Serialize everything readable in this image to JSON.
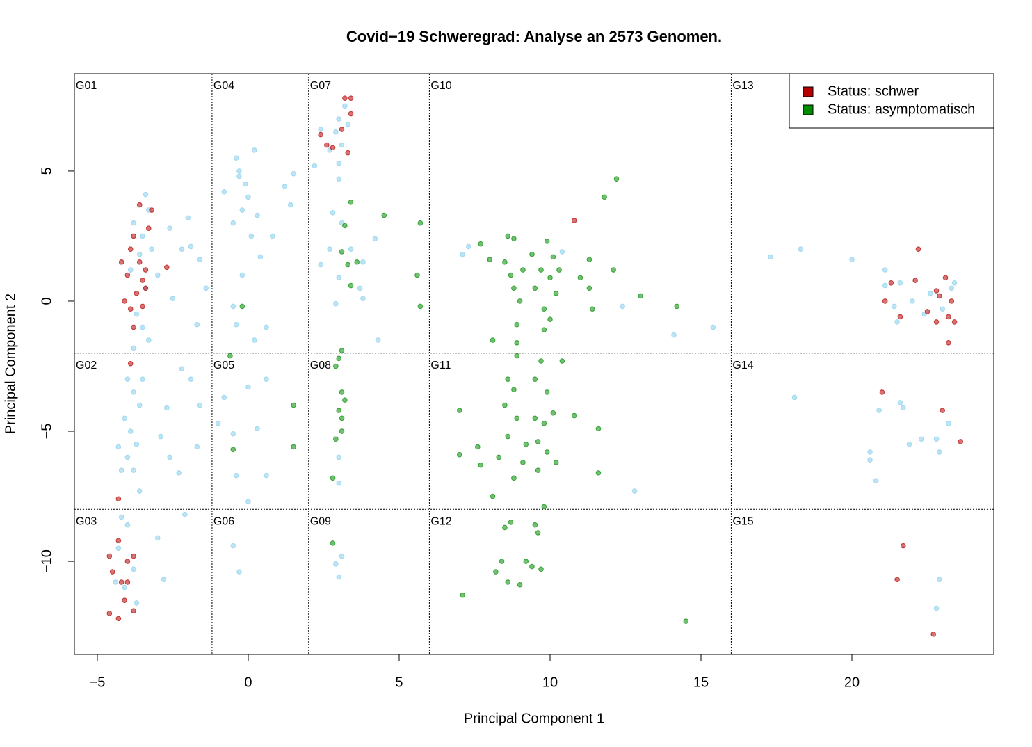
{
  "chart_data": {
    "type": "scatter",
    "title": "Covid−19 Schweregrad: Analyse an 2573 Genomen.",
    "xlabel": "Principal Component 1",
    "ylabel": "Principal Component 2",
    "xlim": [
      -5.76,
      24.7
    ],
    "ylim": [
      -13.58,
      8.74
    ],
    "xticks": [
      {
        "value": -5,
        "label": "−5"
      },
      0,
      5,
      10,
      15,
      20
    ],
    "yticks": [
      {
        "value": -10,
        "label": "−10"
      },
      {
        "value": -5,
        "label": "−5"
      },
      0,
      5
    ],
    "x_breaks": [
      -1.2,
      2,
      6,
      16
    ],
    "y_breaks": [
      -2,
      -8
    ],
    "groups": [
      "G01",
      "G02",
      "G03",
      "G04",
      "G05",
      "G06",
      "G07",
      "G08",
      "G09",
      "G10",
      "G11",
      "G12",
      "G13",
      "G14",
      "G15"
    ],
    "legend": "topright",
    "series": [
      {
        "color": "#87ceeb",
        "x": [
          -3.8,
          -3.5,
          -3.3,
          -3.6,
          -3.9,
          -3.4,
          -3.7,
          -3.2,
          -3.5,
          -3.8,
          -3.4,
          -3,
          -2.6,
          -2.2,
          -1.9,
          -1.6,
          -1.4,
          -2,
          -2.5,
          -1.7,
          -3.3,
          -4,
          -3.8,
          -3.6,
          -4.1,
          -3.9,
          -3.7,
          -4,
          -3.8,
          -4.3,
          -3.5,
          -4.2,
          -2.7,
          -2.9,
          -2.6,
          -2.3,
          -2.2,
          -1.9,
          -1.6,
          -1.7,
          -3.6,
          -4.2,
          -4,
          -4.3,
          -3.8,
          -4.1,
          -3.7,
          -4.4,
          -3,
          -2.8,
          -2.1,
          -0.3,
          -0.1,
          -0.4,
          0,
          -0.2,
          0.2,
          -0.5,
          0.1,
          -0.3,
          0.3,
          -0.8,
          1.2,
          1.5,
          1.4,
          0.8,
          0.4,
          -0.2,
          -0.5,
          0.6,
          0.2,
          -0.4,
          0,
          0.6,
          0.3,
          -0.8,
          -0.5,
          -1,
          -0.4,
          0.6,
          0,
          -0.5,
          -0.3,
          3,
          3.2,
          2.9,
          3.1,
          3.3,
          2.7,
          3,
          2.4,
          2.2,
          3,
          2.8,
          3.1,
          2.7,
          3.4,
          3.8,
          2.4,
          3,
          3.7,
          2.9,
          4.2,
          3.8,
          4.3,
          3,
          3,
          2.9,
          3.1,
          3,
          7.1,
          7.3,
          12.4,
          14.1,
          15.4,
          10.4,
          12.8,
          17.3,
          18.3,
          20,
          21.1,
          21.1,
          21.6,
          21.5,
          22,
          22.6,
          23,
          23.3,
          21.4,
          22.4,
          23.4,
          18.1,
          20.9,
          21.7,
          21.6,
          21.9,
          22.3,
          22.8,
          23.2,
          20.6,
          20.6,
          20.8,
          22.9,
          22.9,
          22.8
        ],
        "values": [
          3,
          2.5,
          3.5,
          1.8,
          1.2,
          0.5,
          -0.5,
          2,
          -1,
          -1.8,
          4.1,
          1,
          2.8,
          2,
          2.1,
          1.6,
          0.5,
          3.2,
          0.1,
          -0.9,
          -1.5,
          -3,
          -3.5,
          -4,
          -4.5,
          -5,
          -5.5,
          -6,
          -6.5,
          -5.6,
          -3,
          -6.5,
          -4.1,
          -5.2,
          -6,
          -6.6,
          -2.6,
          -3,
          -4,
          -5.6,
          -7.3,
          -8.3,
          -8.6,
          -9.5,
          -10.3,
          -11,
          -11.6,
          -10.8,
          -9.1,
          -10.7,
          -8.2,
          5,
          4.5,
          5.5,
          4,
          3.5,
          5.8,
          3,
          2.5,
          4.8,
          3.3,
          4.2,
          4.4,
          4.9,
          3.7,
          2.5,
          1.7,
          1,
          -0.2,
          -1,
          -1.5,
          -0.9,
          -3.3,
          -3,
          -4.9,
          -3.7,
          -5.1,
          -4.7,
          -6.7,
          -6.7,
          -7.7,
          -9.4,
          -10.4,
          7,
          7.5,
          6.5,
          6,
          6.8,
          5.8,
          5.3,
          6.6,
          5.2,
          4.7,
          3.4,
          3,
          2,
          2,
          1.5,
          1.4,
          0.9,
          0.5,
          -0.1,
          2.4,
          0.1,
          -1.5,
          -6,
          -7,
          -10.1,
          -9.8,
          -10.6,
          1.8,
          2.1,
          -0.2,
          -1.3,
          -1,
          1.9,
          -7.3,
          1.7,
          2,
          1.6,
          1.2,
          0.6,
          0.7,
          -0.8,
          0,
          0.3,
          -0.3,
          0.5,
          -0.2,
          -0.5,
          0.7,
          -3.7,
          -4.2,
          -4.1,
          -3.9,
          -5.5,
          -5.3,
          -5.3,
          -4.7,
          -6.1,
          -5.8,
          -6.9,
          -5.8,
          -10.7,
          -11.8
        ]
      },
      {
        "name": "Status: schwer",
        "color": "#b40000",
        "x": [
          -3.8,
          -3.6,
          -4,
          -3.5,
          -3.7,
          -3.9,
          -3.4,
          -3.6,
          -3.2,
          -3.3,
          -3.9,
          -4.1,
          -3.8,
          -3.5,
          -2.7,
          -4.2,
          -3.4,
          -3.9,
          -4.3,
          -4.3,
          -4.5,
          -4,
          -3.8,
          -4.2,
          -4.1,
          -3.8,
          -4.3,
          -4.6,
          -4.6,
          -4,
          3.2,
          3.4,
          2.4,
          2.6,
          2.8,
          3.1,
          3.3,
          3.4,
          10.8,
          22.2,
          21.3,
          22.1,
          23.1,
          21.1,
          21.6,
          22.5,
          22.9,
          23.3,
          23.2,
          23.4,
          22.8,
          23.2,
          22.8,
          21,
          23,
          23.6,
          21.7,
          21.5,
          22.7
        ],
        "values": [
          2.5,
          1.5,
          1,
          0.8,
          0.3,
          -0.3,
          1.2,
          3.7,
          3.5,
          2.8,
          2,
          0,
          -1,
          -0.2,
          1.3,
          1.5,
          0.5,
          -2.4,
          -7.6,
          -9.2,
          -10.4,
          -10,
          -9.8,
          -10.8,
          -11.5,
          -11.9,
          -12.2,
          -12,
          -9.8,
          -10.8,
          7.8,
          7.8,
          6.4,
          6,
          5.9,
          6.6,
          5.7,
          7.2,
          3.1,
          2,
          0.7,
          0.8,
          0.9,
          0,
          -0.6,
          -0.4,
          0.2,
          0,
          -0.6,
          -0.8,
          -0.8,
          -1.6,
          0.4,
          -3.5,
          -4.2,
          -5.4,
          -9.4,
          -10.7,
          -12.8
        ]
      },
      {
        "name": "Status: asymptomatisch",
        "color": "#008a00",
        "x": [
          -0.2,
          -0.6,
          -0.5,
          1.5,
          1.5,
          3.4,
          4.5,
          5.7,
          3.2,
          3.1,
          3.6,
          3.3,
          3.4,
          5.6,
          5.7,
          3.1,
          3,
          2.9,
          3.1,
          3.2,
          3,
          3.1,
          3.1,
          2.9,
          2.8,
          2.8,
          7.7,
          8,
          8.6,
          8.8,
          8.5,
          8.7,
          9.1,
          8.8,
          9,
          9.4,
          9.9,
          10.1,
          9.7,
          10,
          10.2,
          9.8,
          10,
          9.5,
          10.3,
          11.3,
          11.8,
          12.2,
          11.3,
          11,
          12.1,
          13,
          14.2,
          8.9,
          8.1,
          9.8,
          8.9,
          11.4,
          8.9,
          9.7,
          10.4,
          8.6,
          8.8,
          9.5,
          9.9,
          8.5,
          8.9,
          9.5,
          9.8,
          8.6,
          9.2,
          9.6,
          9.9,
          10.1,
          10.8,
          11.6,
          7,
          7.6,
          7,
          8.3,
          9.1,
          9.6,
          10.2,
          11.6,
          8.8,
          8.1,
          9.8,
          7.7,
          8.7,
          8.5,
          9.5,
          9.6,
          8.4,
          9.2,
          9.4,
          9.7,
          8.2,
          8.6,
          9,
          7.1,
          14.5
        ],
        "values": [
          -0.2,
          -2.1,
          -5.7,
          -4,
          -5.6,
          3.8,
          3.3,
          3,
          2.9,
          1.9,
          1.5,
          1.4,
          0.6,
          1,
          -0.2,
          -1.9,
          -2.2,
          -2.5,
          -3.5,
          -3.8,
          -4.2,
          -4.5,
          -5,
          -5.3,
          -6.8,
          -9.3,
          2.2,
          1.6,
          2.5,
          2.4,
          1.5,
          1,
          1.2,
          0.5,
          0,
          1.8,
          2.3,
          1.7,
          1.2,
          0.9,
          0.3,
          -0.3,
          -0.7,
          0.5,
          1.2,
          1.6,
          4,
          4.7,
          0.5,
          0.9,
          1.2,
          0.2,
          -0.2,
          -0.9,
          -1.5,
          -1.1,
          -1.6,
          -0.3,
          -2.1,
          -2.3,
          -2.3,
          -3,
          -3.4,
          -3,
          -3.5,
          -4,
          -4.5,
          -4.5,
          -4.7,
          -5.2,
          -5.5,
          -5.4,
          -5.8,
          -4.3,
          -4.4,
          -4.9,
          -4.2,
          -5.6,
          -5.9,
          -6,
          -6.2,
          -6.5,
          -6.2,
          -6.6,
          -6.8,
          -7.5,
          -7.9,
          -6.3,
          -8.5,
          -8.7,
          -8.6,
          -8.9,
          -10,
          -10,
          -10.2,
          -10.3,
          -10.4,
          -10.8,
          -10.9,
          -11.3,
          -12.3
        ]
      }
    ]
  }
}
